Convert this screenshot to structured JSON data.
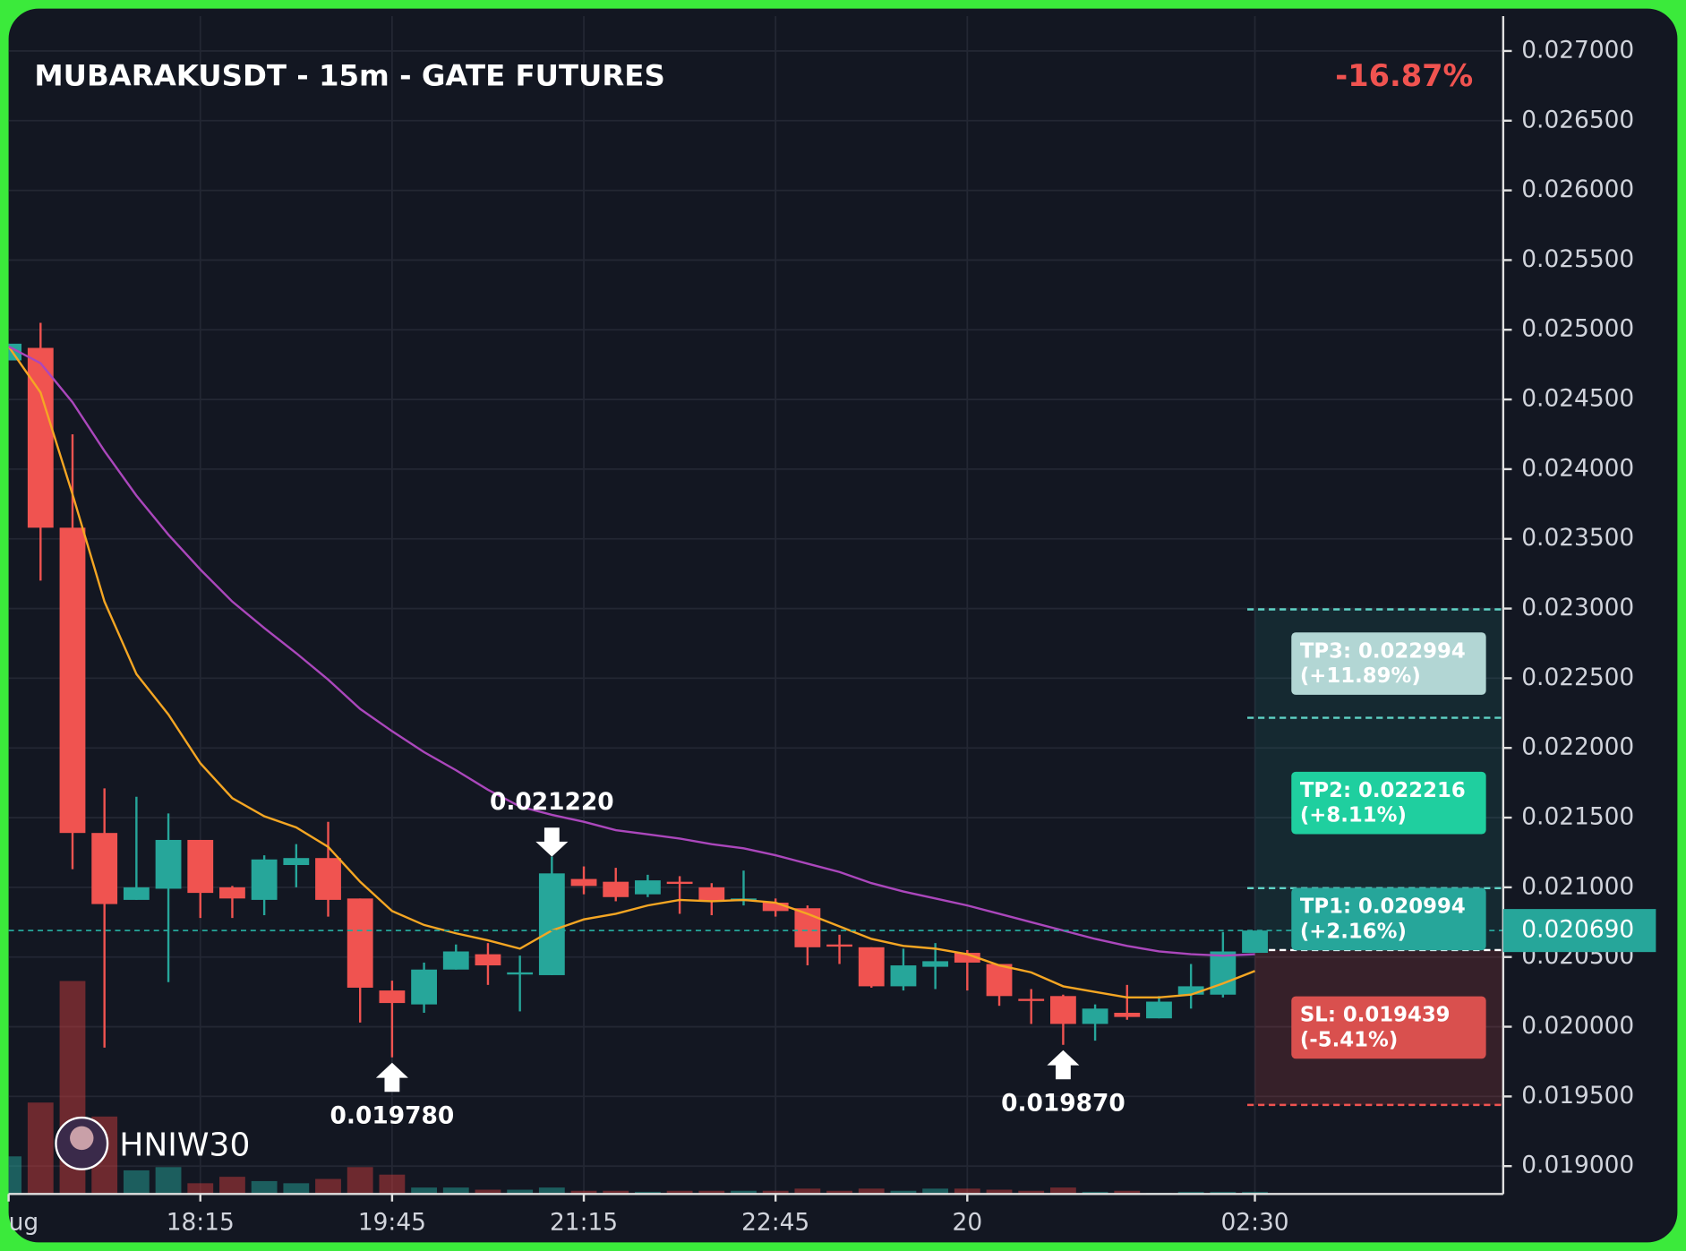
{
  "chart_data": {
    "type": "candlestick",
    "title": "MUBARAKUSDT - 15m - GATE FUTURES",
    "change": "-16.87%",
    "watermark": "HNIW30",
    "categories": [
      "ug",
      null,
      null,
      null,
      null,
      null,
      "18:15",
      null,
      null,
      null,
      null,
      null,
      "19:45",
      null,
      null,
      null,
      null,
      null,
      "21:15",
      null,
      null,
      null,
      null,
      null,
      "22:45",
      null,
      null,
      null,
      null,
      null,
      "20",
      null,
      null,
      null,
      null,
      null,
      null,
      null,
      null,
      "02:30"
    ],
    "open": [
      0.02478,
      0.02487,
      0.02358,
      0.02139,
      0.02091,
      0.02099,
      0.02134,
      0.021,
      0.02091,
      0.02116,
      0.02121,
      0.02092,
      0.02026,
      0.02016,
      0.02041,
      0.02052,
      0.02038,
      0.02037,
      0.02106,
      0.02104,
      0.02095,
      0.02104,
      0.021,
      0.0209,
      0.02089,
      0.02085,
      0.02059,
      0.02057,
      0.02029,
      0.02043,
      0.02053,
      0.02045,
      0.0202,
      0.02022,
      0.02002,
      0.0201,
      0.02006,
      0.02023,
      0.02023,
      0.02053
    ],
    "high": [
      0.0249,
      0.02505,
      0.02425,
      0.02171,
      0.02165,
      0.02153,
      0.02134,
      0.02101,
      0.02123,
      0.02131,
      0.02147,
      0.02092,
      0.02033,
      0.02046,
      0.02059,
      0.0206,
      0.02051,
      0.02122,
      0.02115,
      0.02114,
      0.02109,
      0.02108,
      0.02103,
      0.02112,
      0.02092,
      0.02087,
      0.02066,
      0.02057,
      0.02056,
      0.0206,
      0.02055,
      0.02045,
      0.02027,
      0.02023,
      0.02016,
      0.0203,
      0.02022,
      0.02045,
      0.02068,
      0.02069
    ],
    "low": [
      0.02478,
      0.0232,
      0.02113,
      0.01985,
      0.02091,
      0.02032,
      0.02078,
      0.02078,
      0.0208,
      0.021,
      0.02079,
      0.02003,
      0.01978,
      0.0201,
      0.02041,
      0.0203,
      0.02011,
      0.02037,
      0.02095,
      0.0209,
      0.02093,
      0.02081,
      0.0208,
      0.02087,
      0.02079,
      0.02044,
      0.02045,
      0.02028,
      0.02026,
      0.02027,
      0.02026,
      0.02015,
      0.02002,
      0.01987,
      0.0199,
      0.02005,
      0.02006,
      0.02013,
      0.02021,
      0.02053
    ],
    "close": [
      0.0249,
      0.02358,
      0.02139,
      0.02088,
      0.021,
      0.02134,
      0.02096,
      0.02092,
      0.0212,
      0.02121,
      0.02091,
      0.02028,
      0.02017,
      0.02041,
      0.02054,
      0.02044,
      0.02039,
      0.0211,
      0.02101,
      0.02093,
      0.02105,
      0.02103,
      0.0209,
      0.02092,
      0.02083,
      0.02057,
      0.02058,
      0.02029,
      0.02044,
      0.02047,
      0.02046,
      0.02022,
      0.02019,
      0.02002,
      0.02013,
      0.02007,
      0.02018,
      0.02029,
      0.02054,
      0.02069
    ],
    "volume": [
      35,
      85,
      198,
      72,
      22,
      25,
      10,
      16,
      12,
      10,
      14,
      25,
      18,
      6,
      6,
      4,
      4,
      6,
      3,
      3,
      2,
      3,
      3,
      3,
      3,
      5,
      3,
      5,
      3,
      5,
      5,
      4,
      3,
      6,
      2,
      3,
      1,
      2,
      2,
      2
    ],
    "colors": {
      "up": "#26a69a",
      "down": "#f05350"
    },
    "overlays": [
      {
        "color": "#f5a623",
        "values": [
          0.02488,
          0.02455,
          0.02382,
          0.02305,
          0.02253,
          0.02224,
          0.02189,
          0.02164,
          0.02151,
          0.02143,
          0.02129,
          0.02104,
          0.02083,
          0.02073,
          0.02067,
          0.02062,
          0.02056,
          0.02069,
          0.02077,
          0.02081,
          0.02087,
          0.02091,
          0.0209,
          0.02091,
          0.02089,
          0.02081,
          0.02072,
          0.02063,
          0.02058,
          0.02056,
          0.02052,
          0.02044,
          0.02039,
          0.02029,
          0.02025,
          0.02021,
          0.02021,
          0.02023,
          0.02031,
          0.0204
        ]
      },
      {
        "color": "#ab47bc",
        "values": [
          0.02488,
          0.02476,
          0.02448,
          0.02413,
          0.02381,
          0.02353,
          0.02328,
          0.02305,
          0.02286,
          0.02268,
          0.02249,
          0.02228,
          0.02212,
          0.02197,
          0.02184,
          0.0217,
          0.02158,
          0.02152,
          0.02147,
          0.02141,
          0.02138,
          0.02135,
          0.02131,
          0.02128,
          0.02123,
          0.02117,
          0.02111,
          0.02103,
          0.02097,
          0.02092,
          0.02087,
          0.02081,
          0.02075,
          0.02069,
          0.02063,
          0.02058,
          0.02054,
          0.02052,
          0.02051,
          0.02052
        ]
      }
    ],
    "annotations": [
      {
        "label": "0.021220",
        "value": 0.02122,
        "index": 17,
        "direction": "down"
      },
      {
        "label": "0.019780",
        "value": 0.01978,
        "index": 12,
        "direction": "up"
      },
      {
        "label": "0.019870",
        "value": 0.01987,
        "index": 33,
        "direction": "up"
      }
    ],
    "entry": 0.02055,
    "levels": [
      {
        "label": "TP3: 0.022994",
        "note": "(+11.89%)",
        "value": 0.022994,
        "color": "#b2d6d4"
      },
      {
        "label": "TP2: 0.022216",
        "note": "(+8.11%)",
        "value": 0.022216,
        "color": "#1fcf9f"
      },
      {
        "label": "TP1: 0.020994",
        "note": "(+2.16%)",
        "value": 0.020994,
        "color": "#26a69a"
      },
      {
        "label": "SL: 0.019439",
        "note": "(-5.41%)",
        "value": 0.019439,
        "color": "#d9504e"
      }
    ],
    "current_price": {
      "value": 0.02069,
      "label": "0.020690"
    },
    "ylim": [
      0.0188,
      0.02725
    ],
    "yticks": [
      {
        "value": 0.019,
        "label": "0.019000"
      },
      {
        "value": 0.0195,
        "label": "0.019500"
      },
      {
        "value": 0.02,
        "label": "0.020000"
      },
      {
        "value": 0.0205,
        "label": "0.020500"
      },
      {
        "value": 0.021,
        "label": "0.021000"
      },
      {
        "value": 0.0215,
        "label": "0.021500"
      },
      {
        "value": 0.022,
        "label": "0.022000"
      },
      {
        "value": 0.0225,
        "label": "0.022500"
      },
      {
        "value": 0.023,
        "label": "0.023000"
      },
      {
        "value": 0.0235,
        "label": "0.023500"
      },
      {
        "value": 0.024,
        "label": "0.024000"
      },
      {
        "value": 0.0245,
        "label": "0.024500"
      },
      {
        "value": 0.025,
        "label": "0.025000"
      },
      {
        "value": 0.0255,
        "label": "0.025500"
      },
      {
        "value": 0.026,
        "label": "0.026000"
      },
      {
        "value": 0.0265,
        "label": "0.026500"
      },
      {
        "value": 0.027,
        "label": "0.027000"
      }
    ],
    "grid": true
  }
}
